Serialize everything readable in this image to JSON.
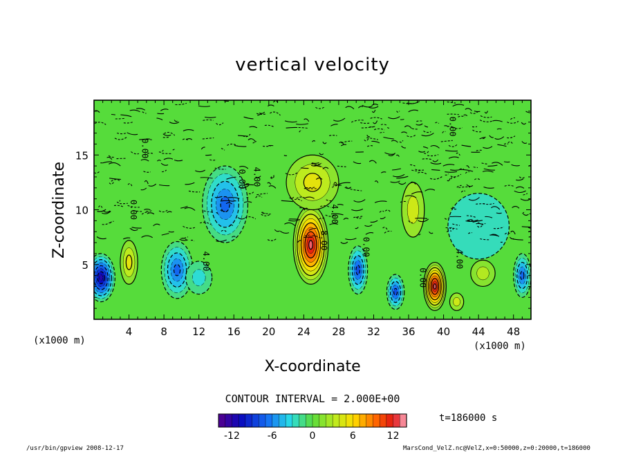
{
  "chart_data": {
    "type": "heatmap",
    "title": "vertical velocity",
    "xlabel": "X-coordinate",
    "ylabel": "Z-coordinate",
    "x_unit_left": "(x1000 m)",
    "x_unit_right": "(x1000 m)",
    "xlim": [
      0,
      50
    ],
    "ylim": [
      0,
      20
    ],
    "x_ticks": [
      4,
      8,
      12,
      16,
      20,
      24,
      28,
      32,
      36,
      40,
      44,
      48
    ],
    "y_ticks": [
      5,
      10,
      15
    ],
    "contour_interval_text": "CONTOUR INTERVAL = 2.000E+00",
    "time_text": "t=186000 s",
    "colorbar": {
      "range": [
        -14,
        14
      ],
      "ticks": [
        -12,
        -6,
        0,
        6,
        12
      ]
    },
    "contour_labels": [
      {
        "x": 5.5,
        "y": 15.6,
        "text": "0.00"
      },
      {
        "x": 18.3,
        "y": 13.0,
        "text": "4.00"
      },
      {
        "x": 16.6,
        "y": 12.8,
        "text": "0.00"
      },
      {
        "x": 4.2,
        "y": 10.0,
        "text": "0.00"
      },
      {
        "x": 12.5,
        "y": 5.3,
        "text": "4.00"
      },
      {
        "x": 27.2,
        "y": 9.6,
        "text": "4.00"
      },
      {
        "x": 26.0,
        "y": 7.2,
        "text": "8.00"
      },
      {
        "x": 30.8,
        "y": 6.6,
        "text": "0.00"
      },
      {
        "x": 41.5,
        "y": 5.5,
        "text": "4.00"
      },
      {
        "x": 37.3,
        "y": 3.8,
        "text": "0.00"
      },
      {
        "x": 40.7,
        "y": 17.6,
        "text": "0.00"
      }
    ],
    "features": [
      {
        "x": 0.8,
        "z": 3.8,
        "w": -12,
        "sx": 1.6,
        "sz": 2.2
      },
      {
        "x": 4.0,
        "z": 5.2,
        "w": 5,
        "sx": 1.0,
        "sz": 2.0
      },
      {
        "x": 9.5,
        "z": 4.5,
        "w": -7,
        "sx": 1.8,
        "sz": 2.6
      },
      {
        "x": 15.0,
        "z": 10.5,
        "w": -7,
        "sx": 2.6,
        "sz": 3.5
      },
      {
        "x": 12.0,
        "z": 3.8,
        "w": -3,
        "sx": 1.5,
        "sz": 1.5
      },
      {
        "x": 24.8,
        "z": 6.8,
        "w": 13,
        "sx": 2.0,
        "sz": 3.6
      },
      {
        "x": 25.0,
        "z": 12.5,
        "w": 5,
        "sx": 3.0,
        "sz": 2.5
      },
      {
        "x": 30.2,
        "z": 4.5,
        "w": -8,
        "sx": 1.1,
        "sz": 2.2
      },
      {
        "x": 34.5,
        "z": 2.5,
        "w": -8,
        "sx": 1.0,
        "sz": 1.6
      },
      {
        "x": 39.0,
        "z": 3.0,
        "w": 13,
        "sx": 1.3,
        "sz": 2.2
      },
      {
        "x": 36.5,
        "z": 10.0,
        "w": 4,
        "sx": 1.3,
        "sz": 2.5
      },
      {
        "x": 41.5,
        "z": 1.6,
        "w": 4,
        "sx": 0.8,
        "sz": 0.8
      },
      {
        "x": 44.5,
        "z": 4.2,
        "w": 3,
        "sx": 1.4,
        "sz": 1.2
      },
      {
        "x": 49.0,
        "z": 4.0,
        "w": -7,
        "sx": 1.0,
        "sz": 2.0
      },
      {
        "x": 44.0,
        "z": 8.5,
        "w": -2.5,
        "sx": 3.5,
        "sz": 3.0
      }
    ]
  },
  "footer": {
    "left": "/usr/bin/gpview   2008-12-17",
    "right": "MarsCond_VelZ.nc@VelZ,x=0:50000,z=0:20000,t=186000"
  }
}
